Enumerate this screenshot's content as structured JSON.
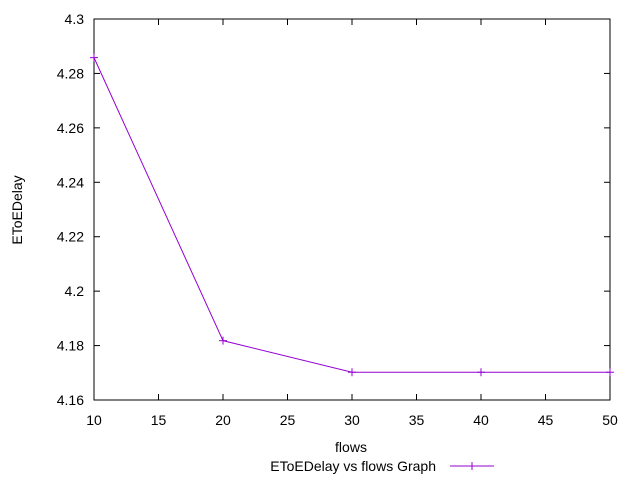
{
  "chart_data": {
    "type": "line",
    "xlabel": "flows",
    "ylabel": "EToEDelay",
    "xlim": [
      10,
      50
    ],
    "ylim": [
      4.16,
      4.3
    ],
    "x_ticks": [
      10,
      15,
      20,
      25,
      30,
      35,
      40,
      45,
      50
    ],
    "y_ticks": [
      4.16,
      4.18,
      4.2,
      4.22,
      4.24,
      4.26,
      4.28,
      4.3
    ],
    "y_tick_labels": [
      "4.16",
      "4.18",
      "4.2",
      "4.22",
      "4.24",
      "4.26",
      "4.28",
      "4.3"
    ],
    "grid": false,
    "legend_position": "bottom-center",
    "series": [
      {
        "name": "EToEDelay vs flows Graph",
        "color": "#9400d3",
        "marker": "plus",
        "x": [
          10,
          20,
          30,
          40,
          50
        ],
        "y": [
          4.2858,
          4.1818,
          4.1702,
          4.1702,
          4.1702
        ]
      }
    ]
  }
}
